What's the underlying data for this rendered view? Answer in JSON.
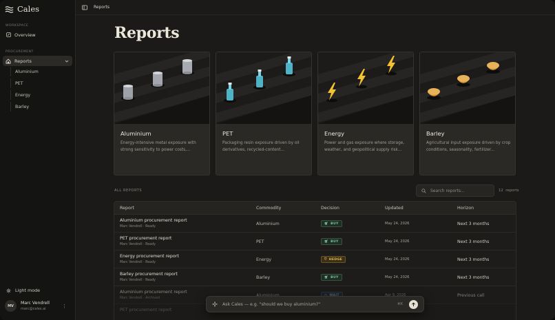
{
  "app": {
    "name": "Cales"
  },
  "sidebar": {
    "workspace_label": "WORKSPACE",
    "overview_label": "Overview",
    "procurement_label": "PROCUREMENT",
    "reports_label": "Reports",
    "sub_items": [
      {
        "label": "Aluminium"
      },
      {
        "label": "PET"
      },
      {
        "label": "Energy"
      },
      {
        "label": "Barley"
      }
    ],
    "light_mode_label": "Light mode",
    "user": {
      "initials": "MV",
      "name": "Marc Vendrell",
      "email": "marc@cales.ai"
    }
  },
  "topbar": {
    "breadcrumb": "Reports"
  },
  "page": {
    "title": "Reports"
  },
  "cards": [
    {
      "name": "Aluminium",
      "description": "Energy-intensive metal exposure with strong sensitivity to power costs,..."
    },
    {
      "name": "PET",
      "description": "Packaging resin exposure driven by oil derivatives, recycled-content..."
    },
    {
      "name": "Energy",
      "description": "Power and gas exposure where storage, weather, and geopolitical supply risk..."
    },
    {
      "name": "Barley",
      "description": "Agricultural input exposure driven by crop conditions, seasonality, fertilizer..."
    }
  ],
  "all_reports": {
    "label": "ALL REPORTS",
    "search_placeholder": "Search reports...",
    "count_number": "12",
    "count_unit": "reports"
  },
  "table": {
    "headers": {
      "report": "Report",
      "commodity": "Commodity",
      "decision": "Decision",
      "updated": "Updated",
      "horizon": "Horizon"
    },
    "rows": [
      {
        "name": "Aluminium procurement report",
        "meta": "Marc Vendrell · Ready",
        "commodity": "Aluminium",
        "decision": "BUY",
        "updated": "May 24, 2026",
        "horizon": "Next 3 months"
      },
      {
        "name": "PET procurement report",
        "meta": "Marc Vendrell · Ready",
        "commodity": "PET",
        "decision": "BUY",
        "updated": "May 24, 2026",
        "horizon": "Next 3 months"
      },
      {
        "name": "Energy procurement report",
        "meta": "Marc Vendrell · Ready",
        "commodity": "Energy",
        "decision": "HEDGE",
        "updated": "May 24, 2026",
        "horizon": "Next 3 months"
      },
      {
        "name": "Barley procurement report",
        "meta": "Marc Vendrell · Ready",
        "commodity": "Barley",
        "decision": "BUY",
        "updated": "May 24, 2026",
        "horizon": "Next 3 months"
      },
      {
        "name": "Aluminium procurement report",
        "meta": "Marc Vendrell · Archived",
        "commodity": "Aluminium",
        "decision": "WAIT",
        "updated": "Apr 9, 2026",
        "horizon": "Previous call"
      },
      {
        "name": "PET procurement report",
        "meta": "",
        "commodity": "",
        "decision": "",
        "updated": "",
        "horizon": ""
      }
    ]
  },
  "chat": {
    "placeholder": "Ask Cales — e.g. \"should we buy aluminium?\"",
    "shortcut": "⌘K"
  },
  "colors": {
    "background": "#1b1a18",
    "sidebar": "#141412",
    "card": "#2a2926",
    "buy": "#7fc29a",
    "hedge": "#e0b857",
    "wait": "#7fa3c6"
  }
}
